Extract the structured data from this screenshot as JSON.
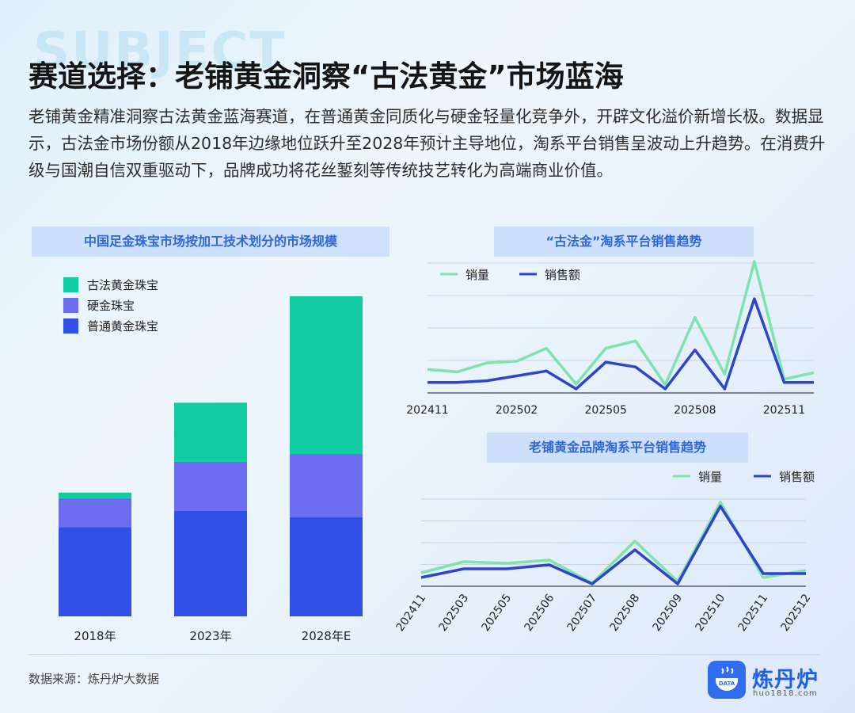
{
  "header": {
    "watermark": "SUBJECT",
    "title": "赛道选择：老铺黄金洞察“古法黄金”市场蓝海",
    "description": "老铺黄金精准洞察古法黄金蓝海赛道，在普通黄金同质化与硬金轻量化竞争外，开辟文化溢价新增长极。数据显示，古法金市场份额从2018年边缘地位跃升至2028年预计主导地位，淘系平台销售呈波动上升趋势。在消费升级与国潮自信双重驱动下，品牌成功将花丝錾刻等传统技艺转化为高端商业价值。"
  },
  "colors": {
    "gufa": "#10cca0",
    "yingjin": "#6c6cf0",
    "putong": "#3050e6",
    "sales_volume": "#7ee3ac",
    "sales_amount": "#2e44cc"
  },
  "chart_data": [
    {
      "type": "bar",
      "stacked": true,
      "title": "中国足金珠宝市场按加工技术划分的市场规模",
      "categories": [
        "2018年",
        "2023年",
        "2028年E"
      ],
      "series": [
        {
          "name": "普通黄金珠宝",
          "values": [
            113,
            134,
            126
          ]
        },
        {
          "name": "硬金珠宝",
          "values": [
            37,
            62,
            80
          ]
        },
        {
          "name": "古法黄金珠宝",
          "values": [
            7,
            75,
            200
          ]
        }
      ],
      "legend": [
        "古法黄金珠宝",
        "硬金珠宝",
        "普通黄金珠宝"
      ],
      "ylim": [
        0,
        410
      ]
    },
    {
      "type": "line",
      "title": "“古法金”淘系平台销售趋势",
      "x": [
        "202411",
        "202412",
        "202501",
        "202502",
        "202503",
        "202504",
        "202505",
        "202506",
        "202507",
        "202508",
        "202509",
        "202510",
        "202511",
        "202512"
      ],
      "tick_labels": [
        "202411",
        "202502",
        "202505",
        "202508",
        "202511"
      ],
      "series": [
        {
          "name": "销量",
          "values": [
            29,
            26,
            37,
            39,
            55,
            11,
            55,
            64,
            10,
            93,
            23,
            162,
            17,
            25
          ]
        },
        {
          "name": "销售额",
          "values": [
            13,
            13,
            15,
            21,
            27,
            5,
            38,
            32,
            5,
            53,
            5,
            116,
            13,
            13
          ]
        }
      ],
      "ylim": [
        0,
        160
      ]
    },
    {
      "type": "line",
      "title": "老铺黄金品牌淘系平台销售趋势",
      "x": [
        "202411",
        "202503",
        "202505",
        "202506",
        "202507",
        "202508",
        "202509",
        "202510",
        "202511",
        "202512"
      ],
      "tick_labels": [
        "202411",
        "202503",
        "202505",
        "202506",
        "202507",
        "202508",
        "202509",
        "202510",
        "202511",
        "202512"
      ],
      "series": [
        {
          "name": "销量",
          "values": [
            17,
            31,
            29,
            33,
            4,
            57,
            6,
            106,
            11,
            20
          ]
        },
        {
          "name": "销售额",
          "values": [
            11,
            22,
            22,
            27,
            3,
            46,
            3,
            101,
            16,
            16
          ]
        }
      ],
      "ylim": [
        0,
        110
      ]
    }
  ],
  "footer": {
    "source": "数据来源：炼丹炉大数据",
    "logo_name": "炼丹炉",
    "logo_url": "huo1818.com",
    "logo_badge": "DATA"
  }
}
